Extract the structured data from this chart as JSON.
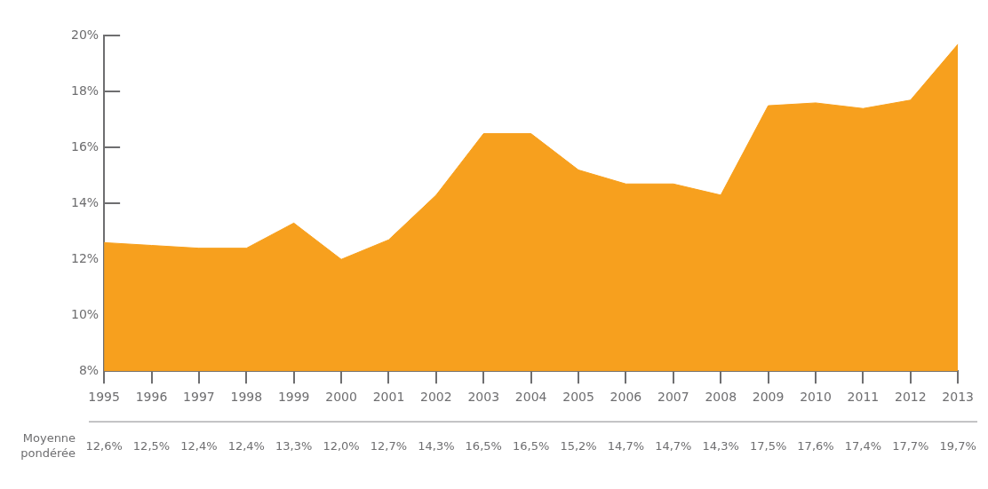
{
  "chart_data": {
    "type": "area",
    "categories": [
      "1995",
      "1996",
      "1997",
      "1998",
      "1999",
      "2000",
      "2001",
      "2002",
      "2003",
      "2004",
      "2005",
      "2006",
      "2007",
      "2008",
      "2009",
      "2010",
      "2011",
      "2012",
      "2013"
    ],
    "series": [
      {
        "name": "Moyenne pondérée",
        "color": "#f7a01e",
        "values": [
          12.6,
          12.5,
          12.4,
          12.4,
          13.3,
          12.0,
          12.7,
          14.3,
          16.5,
          16.5,
          15.2,
          14.7,
          14.7,
          14.3,
          17.5,
          17.6,
          17.4,
          17.7,
          19.7
        ],
        "value_labels": [
          "12,6%",
          "12,5%",
          "12,4%",
          "12,4%",
          "13,3%",
          "12,0%",
          "12,7%",
          "14,3%",
          "16,5%",
          "16,5%",
          "15,2%",
          "14,7%",
          "14,7%",
          "14,3%",
          "17,5%",
          "17,6%",
          "17,4%",
          "17,7%",
          "19,7%"
        ]
      }
    ],
    "ylim": [
      8,
      20
    ],
    "yticks": [
      {
        "value": 8,
        "label": "8%"
      },
      {
        "value": 10,
        "label": "10%"
      },
      {
        "value": 12,
        "label": "12%"
      },
      {
        "value": 14,
        "label": "14%"
      },
      {
        "value": 16,
        "label": "16%"
      },
      {
        "value": 18,
        "label": "18%"
      },
      {
        "value": 20,
        "label": "20%"
      }
    ],
    "grid": false,
    "legend": false
  }
}
